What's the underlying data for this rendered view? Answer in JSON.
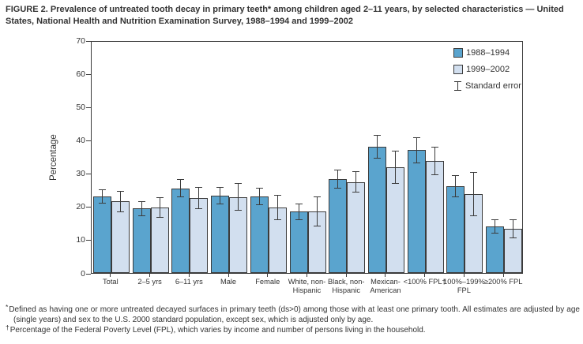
{
  "title": "FIGURE 2. Prevalence of untreated tooth decay in primary teeth* among children aged 2–11 years, by selected characteristics — United States, National Health and Nutrition Examination Survey, 1988–1994 and 1999–2002",
  "colors": {
    "series_1988_1994": "#5AA4CE",
    "series_1999_2002": "#D2DFEF",
    "axis": "#3b3b3b",
    "text": "#333333"
  },
  "legend": {
    "items": [
      {
        "label": "1988–1994",
        "color": "#5AA4CE"
      },
      {
        "label": "1999–2002",
        "color": "#D2DFEF"
      }
    ],
    "error_label": "Standard error"
  },
  "chart_data": {
    "type": "bar",
    "title": "Prevalence of untreated tooth decay in primary teeth among children aged 2–11 years",
    "xlabel": "",
    "ylabel": "Percentage",
    "ylim": [
      0,
      70
    ],
    "yticks": [
      0,
      10,
      20,
      30,
      40,
      50,
      60,
      70
    ],
    "grid": false,
    "legend_position": "top-right",
    "error_bars": "standard error",
    "categories": [
      "Total",
      "2–5 yrs",
      "6–11 yrs",
      "Male",
      "Female",
      "White, non-Hispanic",
      "Black, non-Hispanic",
      "Mexican-American",
      "<100% FPL†",
      "100%–199% FPL",
      "≥200% FPL"
    ],
    "series": [
      {
        "name": "1988–1994",
        "color": "#5AA4CE",
        "values": [
          23.0,
          19.4,
          25.5,
          23.3,
          23.1,
          18.4,
          28.3,
          38.0,
          37.0,
          26.1,
          14.0
        ],
        "se": [
          2.1,
          2.2,
          2.8,
          2.6,
          2.6,
          2.6,
          2.8,
          3.5,
          3.9,
          3.4,
          2.2
        ]
      },
      {
        "name": "1999–2002",
        "color": "#D2DFEF",
        "values": [
          21.5,
          19.7,
          22.6,
          22.9,
          19.8,
          18.6,
          27.4,
          31.8,
          33.7,
          23.8,
          13.3
        ],
        "se": [
          3.3,
          3.1,
          3.3,
          4.2,
          3.8,
          4.5,
          3.1,
          5.0,
          4.3,
          6.6,
          2.9
        ]
      }
    ]
  },
  "footnotes": [
    {
      "marker": "*",
      "text": "Defined as having one or more untreated decayed surfaces in primary teeth (ds>0) among those with at least one primary tooth. All estimates are adjusted by age (single years) and sex to the U.S. 2000 standard population, except sex, which is adjusted only by age."
    },
    {
      "marker": "†",
      "text": "Percentage of the Federal Poverty Level (FPL), which varies by income and number of persons living in the household."
    }
  ]
}
